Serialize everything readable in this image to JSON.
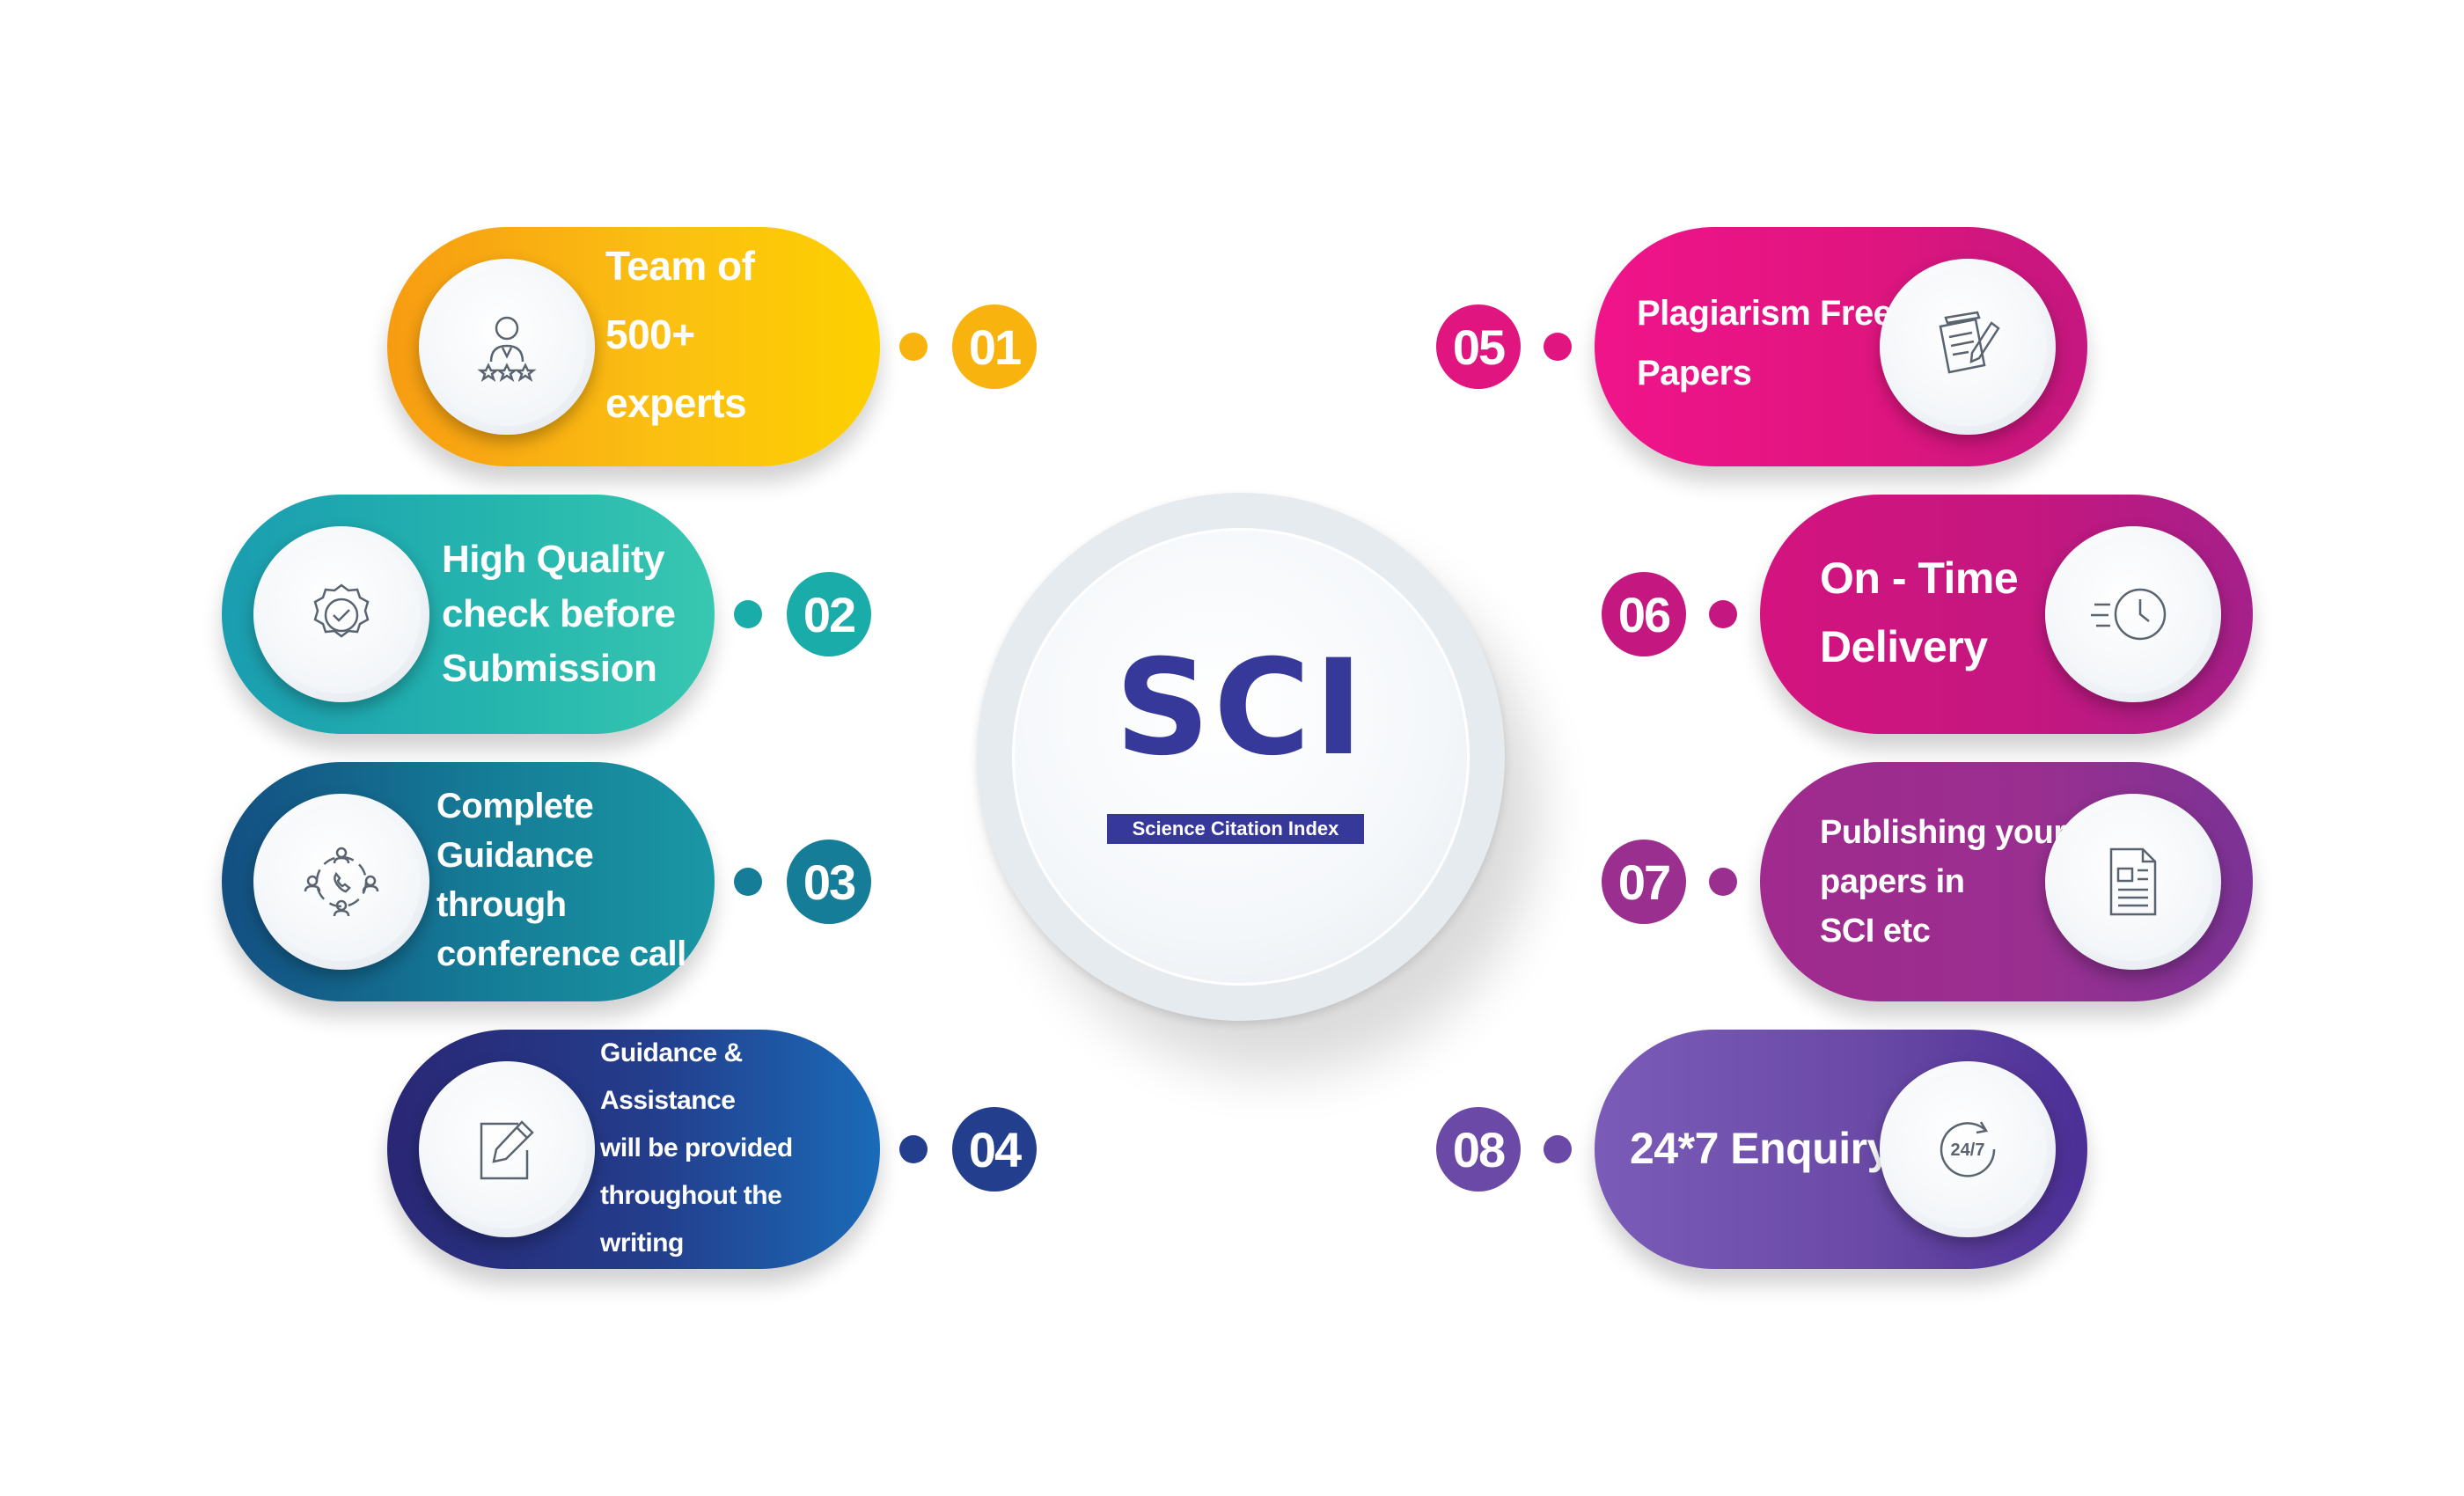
{
  "center": {
    "title": "SCI",
    "subtitle": "Science Citation Index",
    "title_color": "#36389a"
  },
  "items": [
    {
      "number": "01",
      "lines": [
        "Team of",
        "500+ experts"
      ],
      "icon": "expert-team-icon",
      "color": "#f9b30f"
    },
    {
      "number": "02",
      "lines": [
        "High Quality",
        "check before",
        "Submission"
      ],
      "icon": "quality-badge-icon",
      "color": "#1aaca9"
    },
    {
      "number": "03",
      "lines": [
        "Complete",
        "Guidance through",
        "conference call"
      ],
      "icon": "conference-call-icon",
      "color": "#157d97"
    },
    {
      "number": "04",
      "lines": [
        "Guidance & Assistance",
        "will be provided",
        "throughout the writing"
      ],
      "icon": "edit-document-icon",
      "color": "#233e8c"
    },
    {
      "number": "05",
      "lines": [
        "Plagiarism Free",
        "Papers"
      ],
      "icon": "paper-pen-icon",
      "color": "#e0157f"
    },
    {
      "number": "06",
      "lines": [
        "On - Time",
        "Delivery"
      ],
      "icon": "fast-clock-icon",
      "color": "#c4177f"
    },
    {
      "number": "07",
      "lines": [
        "Publishing your",
        "papers in",
        "SCI etc"
      ],
      "icon": "document-icon",
      "color": "#9a2f90"
    },
    {
      "number": "08",
      "lines": [
        "24*7 Enquiry"
      ],
      "icon": "24-7-icon",
      "color": "#6a4aa6"
    }
  ]
}
